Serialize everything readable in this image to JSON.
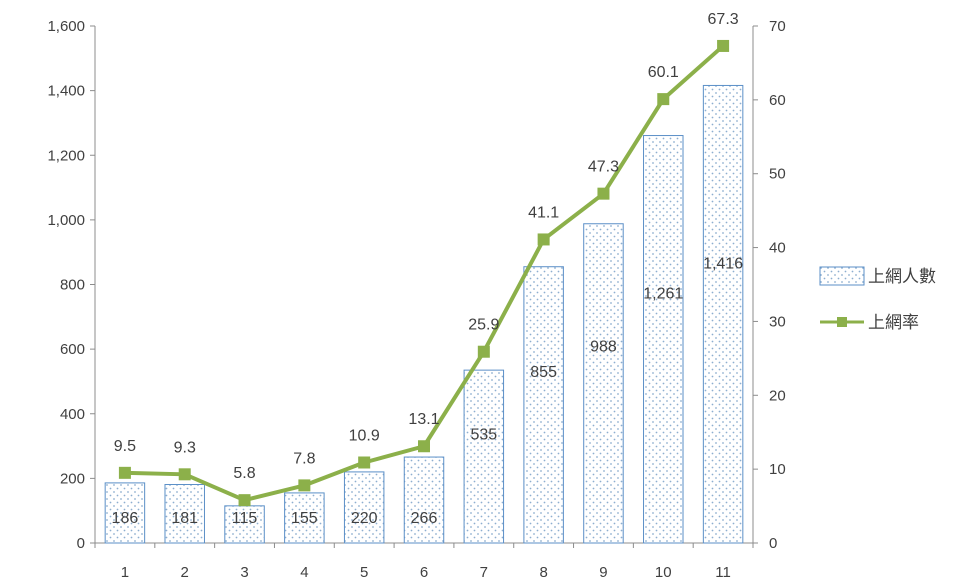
{
  "chart_data": {
    "type": "bar",
    "categories": [
      "1",
      "2",
      "3",
      "4",
      "5",
      "6",
      "7",
      "8",
      "9",
      "10",
      "11"
    ],
    "series": [
      {
        "name": "上網人數",
        "type": "bar",
        "axis": "left",
        "values": [
          186,
          181,
          115,
          155,
          220,
          266,
          535,
          855,
          988,
          1261,
          1416
        ],
        "labels": [
          "186",
          "181",
          "115",
          "155",
          "220",
          "266",
          "535",
          "855",
          "988",
          "1,261",
          "1,416"
        ],
        "color": "#9dc3e6"
      },
      {
        "name": "上網率",
        "type": "line",
        "axis": "right",
        "values": [
          9.5,
          9.3,
          5.8,
          7.8,
          10.9,
          13.1,
          25.9,
          41.1,
          47.3,
          60.1,
          67.3
        ],
        "labels": [
          "9.5",
          "9.3",
          "5.8",
          "7.8",
          "10.9",
          "13.1",
          "25.9",
          "41.1",
          "47.3",
          "60.1",
          "67.3"
        ],
        "color": "#8cb04a"
      }
    ],
    "y_left": {
      "range": [
        0,
        1600
      ],
      "ticks": [
        0,
        200,
        400,
        600,
        800,
        1000,
        1200,
        1400,
        1600
      ],
      "tick_labels": [
        "0",
        "200",
        "400",
        "600",
        "800",
        "1,000",
        "1,200",
        "1,400",
        "1,600"
      ]
    },
    "y_right": {
      "range": [
        0,
        70
      ],
      "ticks": [
        0,
        10,
        20,
        30,
        40,
        50,
        60,
        70
      ],
      "tick_labels": [
        "0",
        "10",
        "20",
        "30",
        "40",
        "50",
        "60",
        "70"
      ]
    },
    "grid": false,
    "legend": {
      "position": "right",
      "entries": [
        "上網人數",
        "上網率"
      ]
    },
    "title": "",
    "xlabel": "",
    "ylabel": ""
  }
}
